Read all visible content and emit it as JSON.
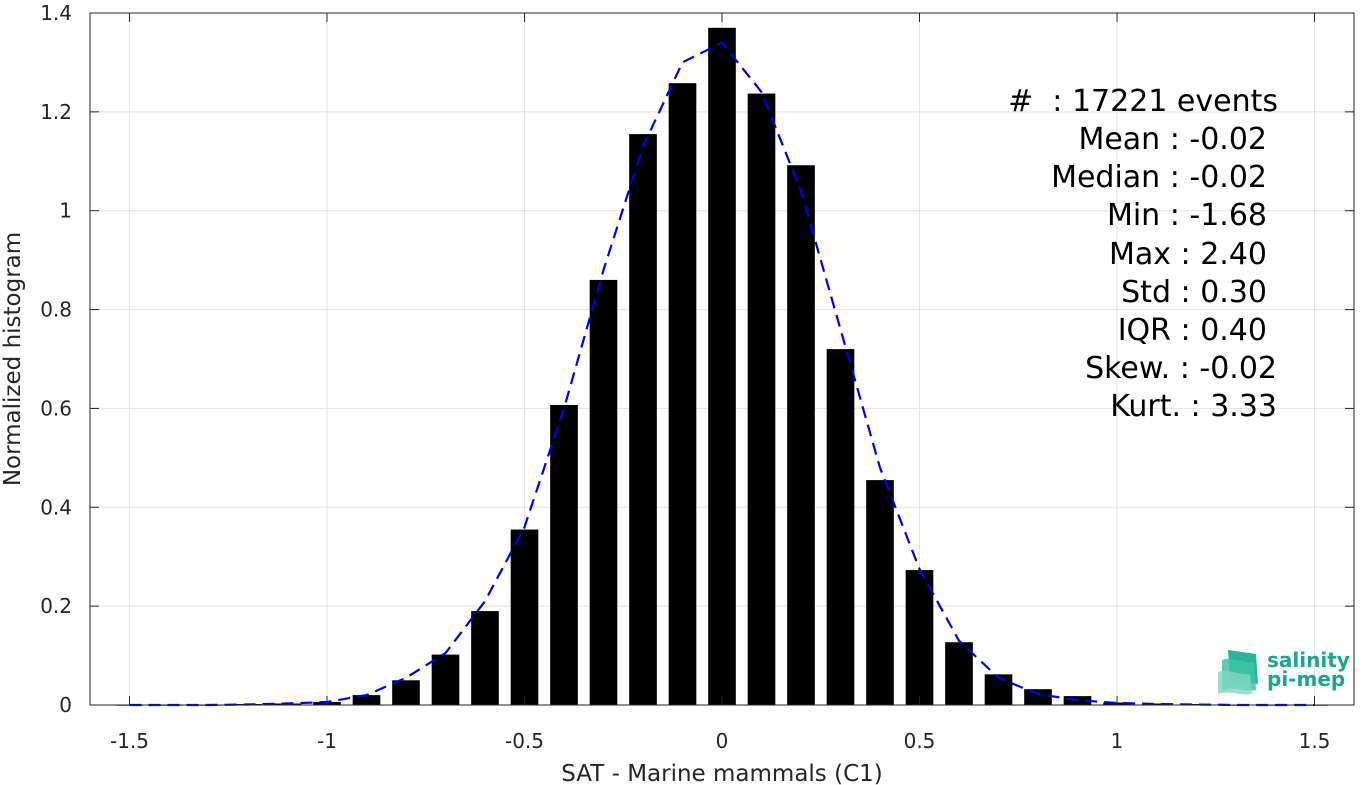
{
  "chart_data": {
    "type": "bar",
    "xlabel": "SAT - Marine mammals (C1)",
    "ylabel": "Normalized histogram",
    "xlim": [
      -1.6,
      1.6
    ],
    "ylim": [
      0,
      1.4
    ],
    "grid": true,
    "x_ticks": [
      {
        "value": -1.5,
        "label": "-1.5"
      },
      {
        "value": -1.0,
        "label": "-1"
      },
      {
        "value": -0.5,
        "label": "-0.5"
      },
      {
        "value": 0.0,
        "label": "0"
      },
      {
        "value": 0.5,
        "label": "0.5"
      },
      {
        "value": 1.0,
        "label": "1"
      },
      {
        "value": 1.5,
        "label": "1.5"
      }
    ],
    "y_ticks": [
      {
        "value": 0,
        "label": "0"
      },
      {
        "value": 0.2,
        "label": "0.2"
      },
      {
        "value": 0.4,
        "label": "0.4"
      },
      {
        "value": 0.6,
        "label": "0.6"
      },
      {
        "value": 0.8,
        "label": "0.8"
      },
      {
        "value": 1.0,
        "label": "1"
      },
      {
        "value": 1.2,
        "label": "1.2"
      },
      {
        "value": 1.4,
        "label": "1.4"
      }
    ],
    "bar_color": "#000000",
    "bar_width": 0.07,
    "bins": {
      "x": [
        -1.5,
        -1.4,
        -1.3,
        -1.2,
        -1.1,
        -1.0,
        -0.9,
        -0.8,
        -0.7,
        -0.6,
        -0.5,
        -0.4,
        -0.3,
        -0.2,
        -0.1,
        0.0,
        0.1,
        0.2,
        0.3,
        0.4,
        0.5,
        0.6,
        0.7,
        0.8,
        0.9,
        1.0,
        1.1,
        1.2,
        1.3,
        1.4,
        1.5
      ],
      "values": [
        0.001,
        0.001,
        0.001,
        0.002,
        0.003,
        0.006,
        0.02,
        0.05,
        0.102,
        0.19,
        0.355,
        0.607,
        0.86,
        1.155,
        1.258,
        1.37,
        1.237,
        1.092,
        0.72,
        0.455,
        0.273,
        0.127,
        0.062,
        0.032,
        0.018,
        0.005,
        0.003,
        0.002,
        0.001,
        0.001,
        0.001
      ]
    },
    "fit_curve": {
      "color": "#0000e6",
      "style": "dashed",
      "x": [
        -1.5,
        -1.4,
        -1.3,
        -1.2,
        -1.1,
        -1.0,
        -0.9,
        -0.8,
        -0.7,
        -0.6,
        -0.5,
        -0.4,
        -0.3,
        -0.2,
        -0.1,
        0.0,
        0.1,
        0.2,
        0.3,
        0.4,
        0.5,
        0.6,
        0.7,
        0.8,
        0.9,
        1.0,
        1.1,
        1.2,
        1.3,
        1.4,
        1.5
      ],
      "y": [
        0.0,
        0.0,
        0.0,
        0.001,
        0.003,
        0.006,
        0.02,
        0.055,
        0.105,
        0.21,
        0.36,
        0.6,
        0.88,
        1.13,
        1.3,
        1.34,
        1.24,
        1.04,
        0.76,
        0.48,
        0.275,
        0.13,
        0.055,
        0.022,
        0.01,
        0.004,
        0.002,
        0.001,
        0.0,
        0.0,
        0.0
      ]
    },
    "stats": [
      "#  : 17221 events",
      "Mean : -0.02",
      "Median : -0.02",
      "Min : -1.68",
      "Max : 2.40",
      "Std : 0.30",
      "IQR : 0.40",
      "Skew. : -0.02",
      "Kurt. : 3.33"
    ]
  },
  "logo": {
    "line1": "salinity",
    "line2": "pi-mep",
    "color": "#1aa58f"
  }
}
